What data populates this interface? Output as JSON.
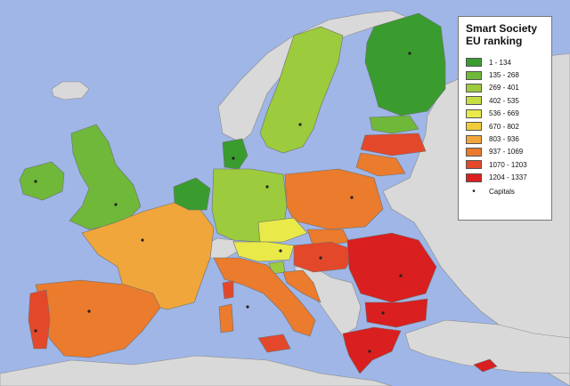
{
  "legend": {
    "title_line1": "Smart Society",
    "title_line2": "EU ranking",
    "ranges": [
      {
        "label": "1 - 134",
        "color": "#3a9c2e"
      },
      {
        "label": "135 - 268",
        "color": "#6fb83a"
      },
      {
        "label": "269 - 401",
        "color": "#9ccb3d"
      },
      {
        "label": "402 - 535",
        "color": "#c9de43"
      },
      {
        "label": "536 - 669",
        "color": "#e9ea4a"
      },
      {
        "label": "670 - 802",
        "color": "#f2cb3a"
      },
      {
        "label": "803 - 936",
        "color": "#f0a63a"
      },
      {
        "label": "937 - 1069",
        "color": "#eb7b2d"
      },
      {
        "label": "1070 - 1203",
        "color": "#e4482a"
      },
      {
        "label": "1204 - 1337",
        "color": "#d91f1f"
      }
    ],
    "capitals_label": "Capitals",
    "capitals_symbol": "•"
  },
  "colors": {
    "sea": "#9fb6e6",
    "non_eu_land": "#d9d9d9",
    "border": "#8a8a8a"
  }
}
